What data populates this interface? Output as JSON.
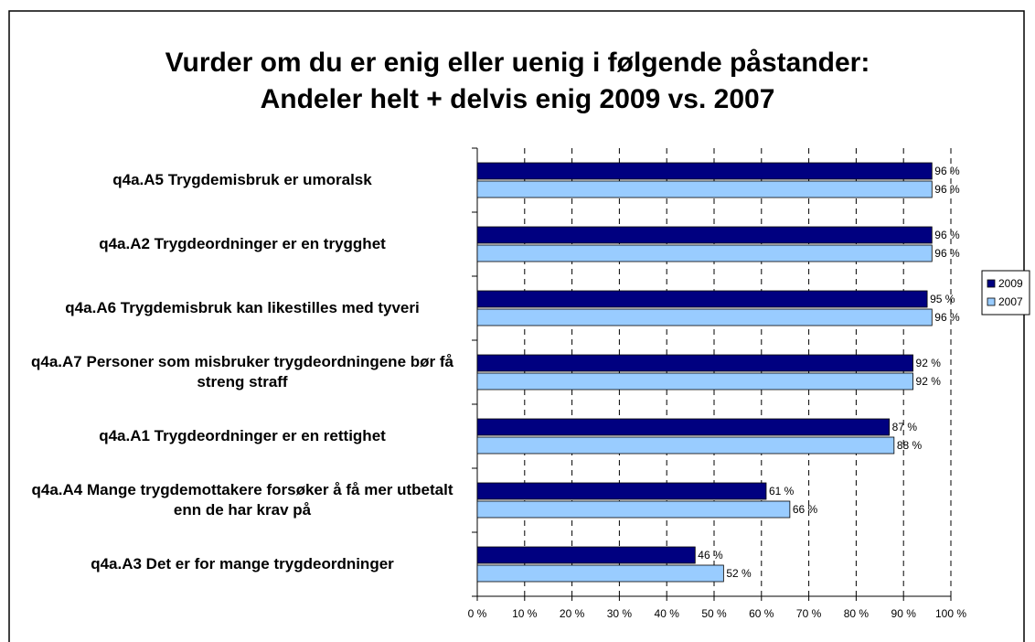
{
  "chart_data": {
    "type": "bar",
    "orientation": "horizontal",
    "title": [
      "Vurder om du er enig eller uenig i følgende påstander:",
      "Andeler helt + delvis enig 2009 vs. 2007"
    ],
    "categories": [
      "q4a.A5 Trygdemisbruk er umoralsk",
      "q4a.A2 Trygdeordninger er en trygghet",
      "q4a.A6 Trygdemisbruk kan likestilles med tyveri",
      "q4a.A7 Personer som misbruker trygdeordningene bør få streng straff",
      "q4a.A1 Trygdeordninger er en rettighet",
      "q4a.A4 Mange trygdemottakere forsøker å få mer utbetalt enn de har krav på",
      "q4a.A3 Det er for mange trygdeordninger"
    ],
    "series": [
      {
        "name": "2009",
        "color": "#000080",
        "values": [
          96,
          96,
          95,
          92,
          87,
          61,
          46
        ],
        "value_labels": [
          "96 %",
          "96 %",
          "95 %",
          "92 %",
          "87 %",
          "61 %",
          "46 %"
        ]
      },
      {
        "name": "2007",
        "color": "#99ccff",
        "values": [
          96,
          96,
          96,
          92,
          88,
          66,
          52
        ],
        "value_labels": [
          "96 %",
          "96 %",
          "96 %",
          "92 %",
          "88 %",
          "66 %",
          "52 %"
        ]
      }
    ],
    "xlim": [
      0,
      100
    ],
    "xticks": [
      {
        "value": 0,
        "label": "0 %"
      },
      {
        "value": 10,
        "label": "10 %"
      },
      {
        "value": 20,
        "label": "20 %"
      },
      {
        "value": 30,
        "label": "30 %"
      },
      {
        "value": 40,
        "label": "40 %"
      },
      {
        "value": 50,
        "label": "50 %"
      },
      {
        "value": 60,
        "label": "60 %"
      },
      {
        "value": 70,
        "label": "70 %"
      },
      {
        "value": 80,
        "label": "80 %"
      },
      {
        "value": 90,
        "label": "90 %"
      },
      {
        "value": 100,
        "label": "100 %"
      }
    ],
    "grid": true,
    "legend": "right"
  }
}
